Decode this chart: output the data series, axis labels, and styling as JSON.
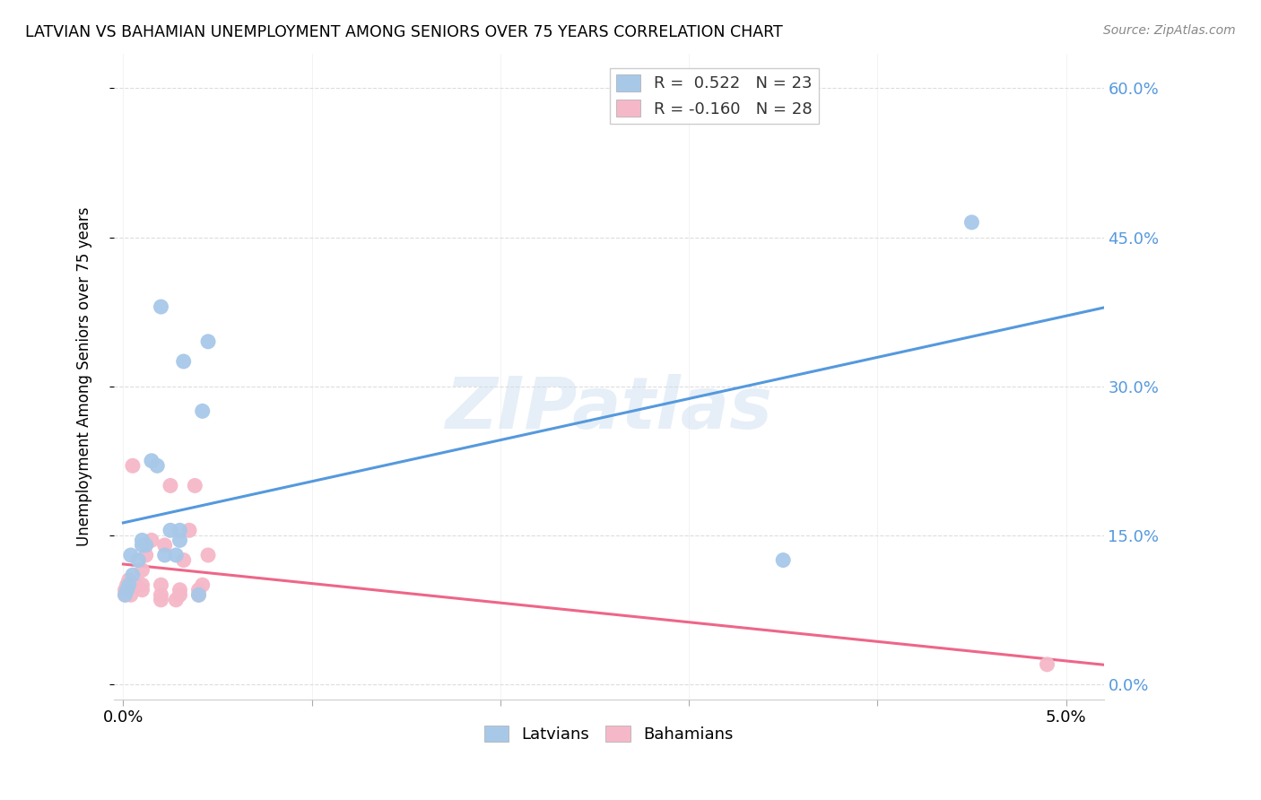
{
  "title": "LATVIAN VS BAHAMIAN UNEMPLOYMENT AMONG SENIORS OVER 75 YEARS CORRELATION CHART",
  "source": "Source: ZipAtlas.com",
  "ylabel": "Unemployment Among Seniors over 75 years",
  "ytick_labels": [
    "0.0%",
    "15.0%",
    "30.0%",
    "45.0%",
    "60.0%"
  ],
  "ytick_vals": [
    0.0,
    0.15,
    0.3,
    0.45,
    0.6
  ],
  "xlim": [
    -0.0005,
    0.052
  ],
  "ylim": [
    -0.015,
    0.635
  ],
  "latvian_scatter_color": "#a8c8e8",
  "bahamian_scatter_color": "#f5b8c8",
  "latvian_line_color": "#5599dd",
  "bahamian_line_color": "#ee6688",
  "legend_latvian_R": "0.522",
  "legend_latvian_N": "23",
  "legend_bahamian_R": "-0.160",
  "legend_bahamian_N": "28",
  "latvian_points": [
    [
      0.0001,
      0.09
    ],
    [
      0.0002,
      0.095
    ],
    [
      0.0003,
      0.1
    ],
    [
      0.0004,
      0.13
    ],
    [
      0.0005,
      0.11
    ],
    [
      0.0008,
      0.125
    ],
    [
      0.001,
      0.14
    ],
    [
      0.001,
      0.145
    ],
    [
      0.0012,
      0.14
    ],
    [
      0.0015,
      0.225
    ],
    [
      0.0018,
      0.22
    ],
    [
      0.002,
      0.38
    ],
    [
      0.0022,
      0.13
    ],
    [
      0.0025,
      0.155
    ],
    [
      0.0028,
      0.13
    ],
    [
      0.003,
      0.145
    ],
    [
      0.003,
      0.155
    ],
    [
      0.0032,
      0.325
    ],
    [
      0.004,
      0.09
    ],
    [
      0.0042,
      0.275
    ],
    [
      0.0045,
      0.345
    ],
    [
      0.045,
      0.465
    ],
    [
      0.035,
      0.125
    ]
  ],
  "bahamian_points": [
    [
      0.0001,
      0.09
    ],
    [
      0.0001,
      0.095
    ],
    [
      0.0002,
      0.1
    ],
    [
      0.0003,
      0.105
    ],
    [
      0.0004,
      0.09
    ],
    [
      0.0005,
      0.22
    ],
    [
      0.0007,
      0.1
    ],
    [
      0.001,
      0.095
    ],
    [
      0.001,
      0.1
    ],
    [
      0.001,
      0.115
    ],
    [
      0.0012,
      0.13
    ],
    [
      0.0015,
      0.145
    ],
    [
      0.002,
      0.085
    ],
    [
      0.002,
      0.09
    ],
    [
      0.002,
      0.1
    ],
    [
      0.0022,
      0.14
    ],
    [
      0.0025,
      0.2
    ],
    [
      0.0028,
      0.085
    ],
    [
      0.003,
      0.09
    ],
    [
      0.003,
      0.095
    ],
    [
      0.0032,
      0.125
    ],
    [
      0.0035,
      0.155
    ],
    [
      0.0038,
      0.2
    ],
    [
      0.004,
      0.09
    ],
    [
      0.004,
      0.095
    ],
    [
      0.0042,
      0.1
    ],
    [
      0.0045,
      0.13
    ],
    [
      0.049,
      0.02
    ]
  ],
  "watermark": "ZIPatlas",
  "background_color": "#ffffff",
  "grid_color": "#dddddd",
  "xtick_positions": [
    0.0,
    0.01,
    0.02,
    0.03,
    0.04,
    0.05
  ]
}
